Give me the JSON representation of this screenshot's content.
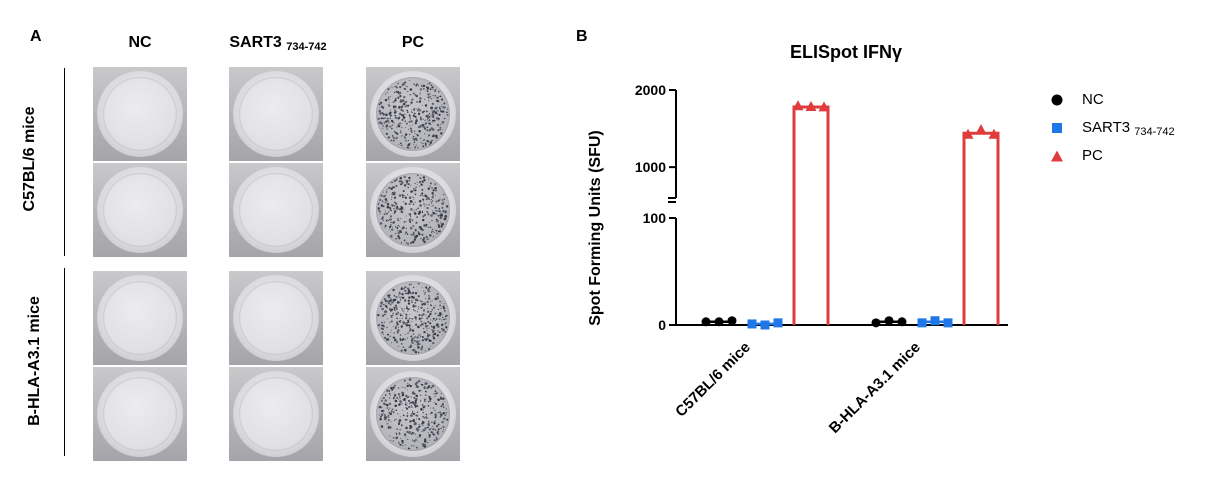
{
  "panel_a": {
    "letter": "A",
    "columns": [
      {
        "label": "NC",
        "sub": ""
      },
      {
        "label": "SART3 ",
        "sub": "734-742"
      },
      {
        "label": "PC",
        "sub": ""
      }
    ],
    "row_groups": [
      {
        "label": "C57BL/6 mice"
      },
      {
        "label": "B-HLA-A3.1 mice"
      }
    ]
  },
  "panel_b": {
    "letter": "B",
    "legend": [
      {
        "label": "NC",
        "sub": "",
        "shape": "circle",
        "color": "#000000"
      },
      {
        "label": "SART3 ",
        "sub": "734-742",
        "shape": "square",
        "color": "#1f77e8"
      },
      {
        "label": "PC",
        "sub": "",
        "shape": "triangle",
        "color": "#e03c3c"
      }
    ]
  },
  "chart_data": {
    "type": "bar",
    "title": "ELISpot IFNγ",
    "xlabel": "",
    "ylabel": "Spot Forming Units (SFU)",
    "categories": [
      "C57BL/6 mice",
      "B-HLA-A3.1 mice"
    ],
    "y_axis": {
      "broken": true,
      "lower_segment": {
        "range": [
          0,
          100
        ],
        "ticks": [
          0,
          100
        ]
      },
      "upper_segment": {
        "range": [
          600,
          2000
        ],
        "ticks": [
          1000,
          2000
        ]
      }
    },
    "series": [
      {
        "name": "NC",
        "color": "#000000",
        "marker": "circle",
        "values": [
          3,
          3
        ],
        "points": [
          [
            3,
            3,
            4
          ],
          [
            2,
            4,
            3
          ]
        ]
      },
      {
        "name": "SART3 734-742",
        "color": "#1f77e8",
        "marker": "square",
        "values": [
          1,
          3
        ],
        "points": [
          [
            1,
            0,
            2
          ],
          [
            2,
            4,
            2
          ]
        ]
      },
      {
        "name": "PC",
        "color": "#e03c3c",
        "marker": "triangle",
        "values": [
          1780,
          1440
        ],
        "points": [
          [
            1790,
            1780,
            1775
          ],
          [
            1420,
            1480,
            1420
          ]
        ]
      }
    ],
    "grid": false,
    "legend_position": "right"
  }
}
